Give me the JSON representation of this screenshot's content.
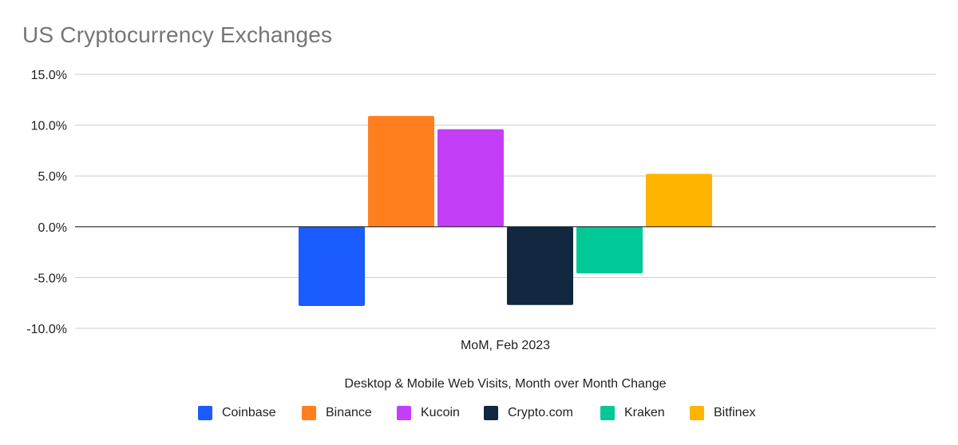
{
  "chart_data": {
    "type": "bar",
    "title": "US Cryptocurrency Exchanges",
    "categories": [
      "MoM, Feb 2023"
    ],
    "xlabel": "Desktop & Mobile Web Visits, Month over Month Change",
    "ylabel": "",
    "ylim": [
      -10,
      15
    ],
    "yticks": [
      15,
      10,
      5,
      0,
      -5,
      -10
    ],
    "ytick_labels": [
      "15.0%",
      "10.0%",
      "5.0%",
      "0.0%",
      "-5.0%",
      "-10.0%"
    ],
    "grid": true,
    "legend_position": "bottom",
    "series": [
      {
        "name": "Coinbase",
        "values": [
          -7.8
        ],
        "color": "#1a5cff"
      },
      {
        "name": "Binance",
        "values": [
          10.9
        ],
        "color": "#ff7f1f"
      },
      {
        "name": "Kucoin",
        "values": [
          9.6
        ],
        "color": "#c23ff7"
      },
      {
        "name": "Crypto.com",
        "values": [
          -7.7
        ],
        "color": "#10273f"
      },
      {
        "name": "Kraken",
        "values": [
          -4.6
        ],
        "color": "#00c896"
      },
      {
        "name": "Bitfinex",
        "values": [
          5.2
        ],
        "color": "#ffb400"
      }
    ]
  }
}
